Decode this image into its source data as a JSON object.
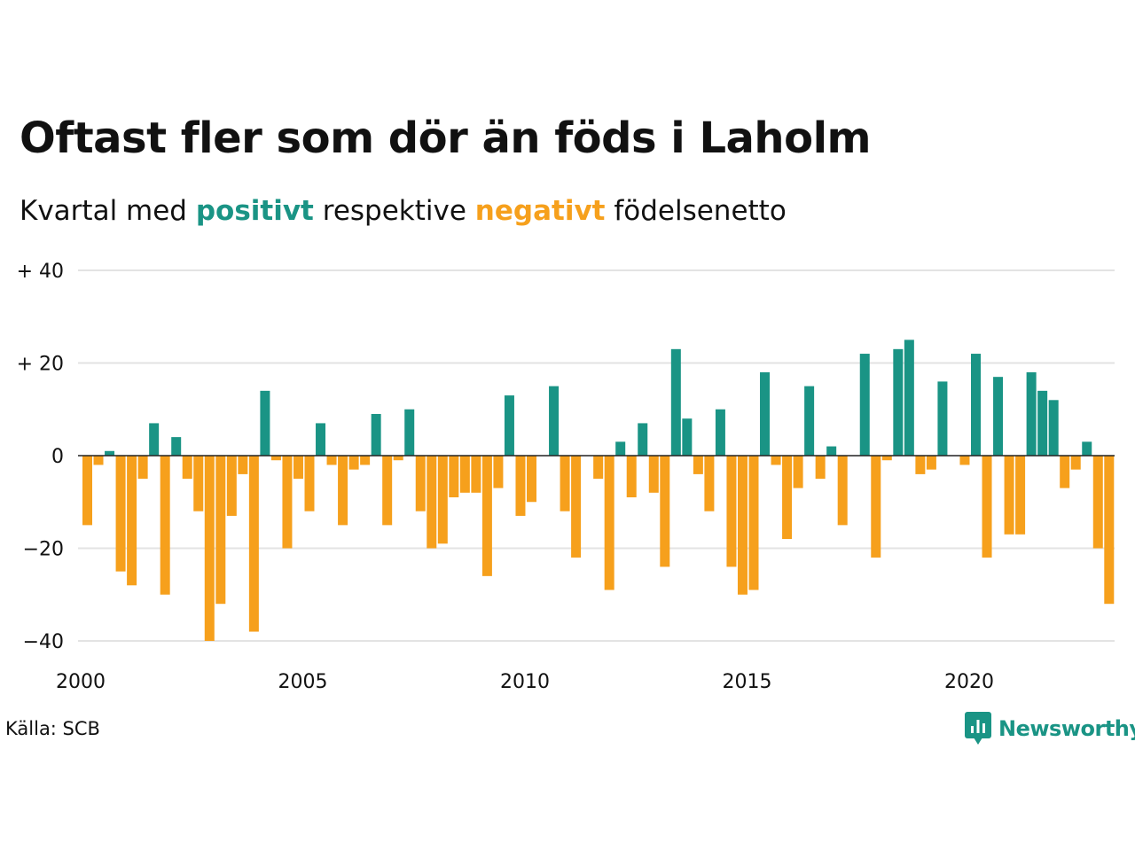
{
  "title": "Oftast fler som dör än föds i Laholm",
  "subtitle": {
    "prefix": "Kvartal med",
    "positive": "positivt",
    "middle": "respektive",
    "negative": "negativt",
    "suffix": "födelsenetto"
  },
  "source": "Källa: SCB",
  "brand": {
    "name": "Newsworthy",
    "icon": "newsworthy-logo-icon"
  },
  "colors": {
    "positive": "#1a9485",
    "negative": "#f6a01c",
    "grid": "#e3e3e3",
    "zero_line": "#222222",
    "text": "#111111"
  },
  "chart_data": {
    "type": "bar",
    "x_start": 2000,
    "x_step_years": 0.25,
    "values": [
      -15,
      -2,
      1,
      -25,
      -28,
      -5,
      7,
      -30,
      4,
      -5,
      -12,
      -40,
      -32,
      -13,
      -4,
      -38,
      14,
      -1,
      -20,
      -5,
      -12,
      7,
      -2,
      -15,
      -3,
      -2,
      9,
      -15,
      -1,
      10,
      -12,
      -20,
      -19,
      -9,
      -8,
      -8,
      -26,
      -7,
      13,
      -13,
      -10,
      0,
      15,
      -12,
      -22,
      0,
      -5,
      -29,
      3,
      -9,
      7,
      -8,
      -24,
      23,
      8,
      -4,
      -12,
      10,
      -24,
      -30,
      -29,
      18,
      -2,
      -18,
      -7,
      15,
      -5,
      2,
      -15,
      0,
      22,
      -22,
      -1,
      23,
      25,
      -4,
      -3,
      16,
      0,
      -2,
      22,
      -22,
      17,
      -17,
      -17,
      18,
      14,
      12,
      -7,
      -3,
      3,
      -20,
      -32
    ],
    "yticks": [
      40,
      20,
      0,
      -20,
      -40
    ],
    "ytick_labels": [
      "+ 40",
      "+ 20",
      "0",
      "−20",
      "−40"
    ],
    "xticks": [
      2000,
      2005,
      2010,
      2015,
      2020
    ],
    "xtick_labels": [
      "2000",
      "2005",
      "2010",
      "2015",
      "2020"
    ],
    "ylim": [
      -40,
      40
    ],
    "xlim": [
      2000,
      2023.5
    ],
    "grid": true,
    "legend": "none"
  }
}
